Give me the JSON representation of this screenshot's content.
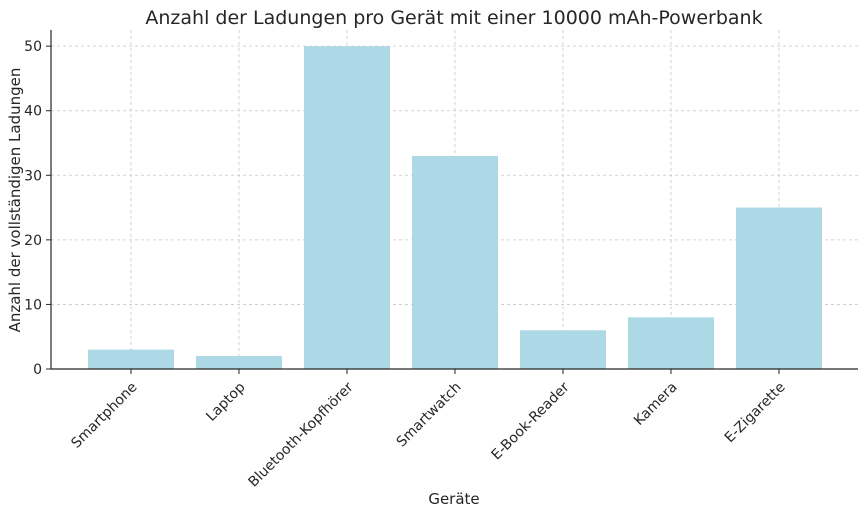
{
  "chart_data": {
    "type": "bar",
    "title": "Anzahl der Ladungen pro Gerät mit einer 10000 mAh-Powerbank",
    "xlabel": "Geräte",
    "ylabel": "Anzahl der vollständigen Ladungen",
    "categories": [
      "Smartphone",
      "Laptop",
      "Bluetooth-Kopfhörer",
      "Smartwatch",
      "E-Book-Reader",
      "Kamera",
      "E-Zigarette"
    ],
    "values": [
      3,
      2,
      50,
      33,
      6,
      8,
      25
    ],
    "ylim": [
      0,
      52.5
    ],
    "yticks": [
      0,
      10,
      20,
      30,
      40,
      50
    ],
    "grid": true,
    "colors": {
      "bar": "#add8e6"
    }
  }
}
